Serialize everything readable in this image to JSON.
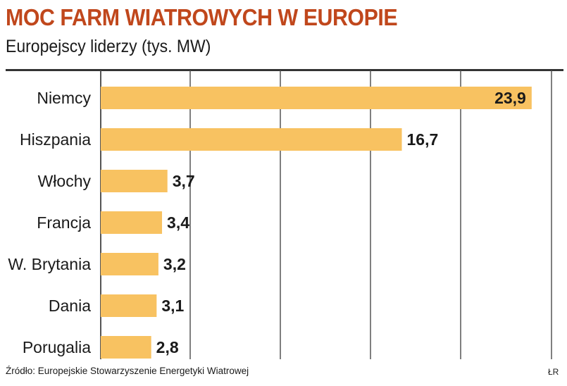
{
  "header": {
    "title": "MOC FARM WIATROWYCH W EUROPIE",
    "subtitle": "Europejscy liderzy (tys. MW)"
  },
  "footer": {
    "source": "Źródło: Europejskie Stowarzyszenie Energetyki Wiatrowej",
    "credit": "ŁR"
  },
  "colors": {
    "title": "#c0471c",
    "bar": "#f8c261",
    "grid": "#555555",
    "text": "#1a1a1a"
  },
  "chart_data": {
    "type": "bar",
    "orientation": "horizontal",
    "categories": [
      "Niemcy",
      "Hiszpania",
      "Włochy",
      "Francja",
      "W. Brytania",
      "Dania",
      "Porugalia"
    ],
    "values": [
      23.9,
      16.7,
      3.7,
      3.4,
      3.2,
      3.1,
      2.8
    ],
    "value_labels": [
      "23,9",
      "16,7",
      "3,7",
      "3,4",
      "3,2",
      "3,1",
      "2,8"
    ],
    "xlim": [
      0,
      25
    ],
    "grid": true,
    "gridline_count": 5
  }
}
